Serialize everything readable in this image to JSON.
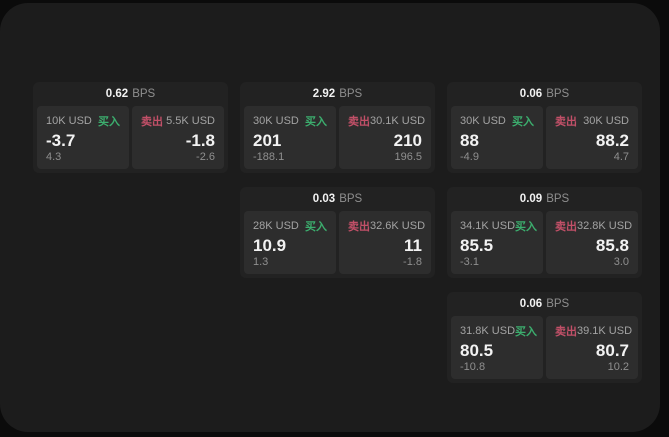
{
  "labels": {
    "bps_unit": "BPS",
    "buy": "买入",
    "sell": "卖出"
  },
  "colors": {
    "buy_green": "#3cae6e",
    "sell_red": "#c25068",
    "window_bg": "#1c1c1c",
    "card_bg": "#222222",
    "panel_bg": "#2d2d2d"
  },
  "cards": [
    {
      "bps": "0.62",
      "buy": {
        "size": "10K USD",
        "price": "-3.7",
        "change": "4.3"
      },
      "sell": {
        "size": "5.5K USD",
        "price": "-1.8",
        "change": "-2.6"
      }
    },
    {
      "bps": "2.92",
      "buy": {
        "size": "30K USD",
        "price": "201",
        "change": "-188.1"
      },
      "sell": {
        "size": "30.1K USD",
        "price": "210",
        "change": "196.5"
      }
    },
    {
      "bps": "0.06",
      "buy": {
        "size": "30K USD",
        "price": "88",
        "change": "-4.9"
      },
      "sell": {
        "size": "30K USD",
        "price": "88.2",
        "change": "4.7"
      }
    },
    {
      "bps": "0.03",
      "buy": {
        "size": "28K USD",
        "price": "10.9",
        "change": "1.3"
      },
      "sell": {
        "size": "32.6K USD",
        "price": "11",
        "change": "-1.8"
      }
    },
    {
      "bps": "0.09",
      "buy": {
        "size": "34.1K USD",
        "price": "85.5",
        "change": "-3.1"
      },
      "sell": {
        "size": "32.8K USD",
        "price": "85.8",
        "change": "3.0"
      }
    },
    {
      "bps": "0.06",
      "buy": {
        "size": "31.8K USD",
        "price": "80.5",
        "change": "-10.8"
      },
      "sell": {
        "size": "39.1K USD",
        "price": "80.7",
        "change": "10.2"
      }
    }
  ]
}
